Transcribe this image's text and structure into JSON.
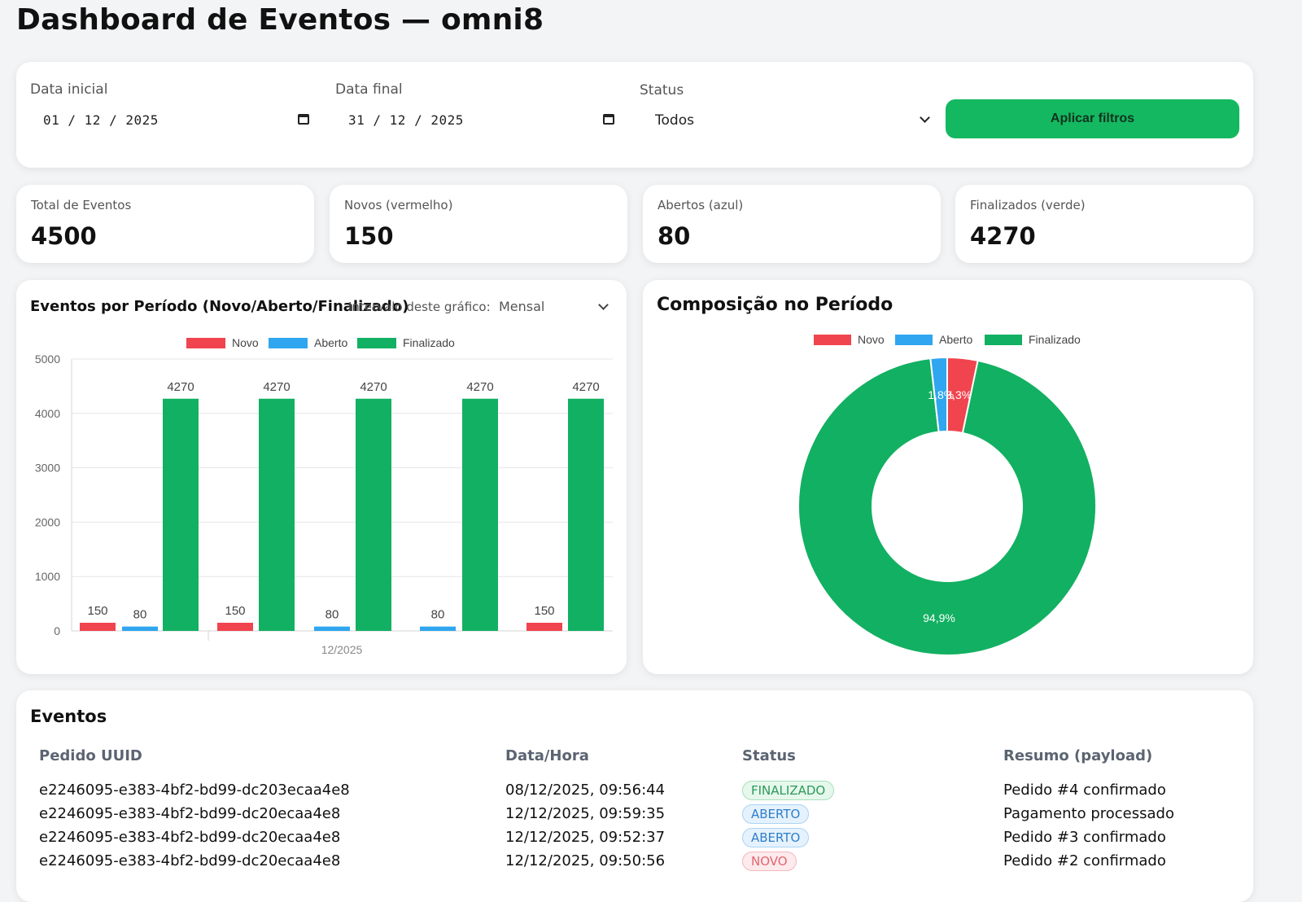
{
  "page_title": "Dashboard de Eventos — omni8",
  "filters": {
    "start_label": "Data inicial",
    "start_value": "01 / 12 / 2025",
    "end_label": "Data final",
    "end_value": "31 / 12 / 2025",
    "status_label": "Status",
    "status_value": "Todos",
    "apply_label": "Aplicar filtros"
  },
  "kpis": [
    {
      "label": "Total de Eventos",
      "value": "4500"
    },
    {
      "label": "Novos (vermelho)",
      "value": "150"
    },
    {
      "label": "Abertos (azul)",
      "value": "80"
    },
    {
      "label": "Finalizados (verde)",
      "value": "4270"
    }
  ],
  "colors": {
    "novo": "#f0444f",
    "aberto": "#2fa6ef",
    "finalizado": "#12b062"
  },
  "bar_card": {
    "title": "Eventos por Período (Novo/Aberto/Finalizado)",
    "interval_label": "Intervalo deste gráfico:",
    "interval_value": "Mensal"
  },
  "pie_card": {
    "title": "Composição no Período"
  },
  "chart_data": [
    {
      "type": "bar",
      "title": "Eventos por Período (Novo/Aberto/Finalizado)",
      "legend": [
        "Novo",
        "Aberto",
        "Finalizado"
      ],
      "y_ticks": [
        0,
        1000,
        2000,
        3000,
        4000,
        5000
      ],
      "ylim": [
        0,
        5000
      ],
      "x_tick_label": "12/2025",
      "bars": [
        {
          "series": "Novo",
          "value": 150,
          "label": "150"
        },
        {
          "series": "Aberto",
          "value": 80,
          "label": "80"
        },
        {
          "series": "Finalizado",
          "value": 4270,
          "label": "4270"
        },
        {
          "series": "Novo",
          "value": 150,
          "label": "150"
        },
        {
          "series": "Finalizado",
          "value": 4270,
          "label": "4270"
        },
        {
          "series": "Aberto",
          "value": 80,
          "label": "80"
        },
        {
          "series": "Finalizado",
          "value": 4270,
          "label": "4270"
        },
        {
          "series": "Aberto",
          "value": 80,
          "label": "80"
        },
        {
          "series": "Finalizado",
          "value": 4270,
          "label": "4270"
        },
        {
          "series": "Novo",
          "value": 150,
          "label": "150"
        },
        {
          "series": "Finalizado",
          "value": 4270,
          "label": "4270"
        }
      ]
    },
    {
      "type": "pie",
      "title": "Composição no Período",
      "legend": [
        "Novo",
        "Aberto",
        "Finalizado"
      ],
      "slices": [
        {
          "name": "Novo",
          "value": 3.3,
          "label": "3,3%"
        },
        {
          "name": "Aberto",
          "value": 1.8,
          "label": "1,8%"
        },
        {
          "name": "Finalizado",
          "value": 94.9,
          "label": "94,9%"
        }
      ]
    }
  ],
  "events": {
    "title": "Eventos",
    "columns": [
      "Pedido UUID",
      "Data/Hora",
      "Status",
      "Resumo (payload)"
    ],
    "rows": [
      {
        "uuid": "e2246095-e383-4bf2-bd99-dc203ecaa4e8",
        "datetime": "08/12/2025, 09:56:44",
        "status": "FINALIZADO",
        "summary": "Pedido #4 confirmado"
      },
      {
        "uuid": "e2246095-e383-4bf2-bd99-dc20ecaa4e8",
        "datetime": "12/12/2025, 09:59:35",
        "status": "ABERTO",
        "summary": "Pagamento processado"
      },
      {
        "uuid": "e2246095-e383-4bf2-bd99-dc20ecaa4e8",
        "datetime": "12/12/2025, 09:52:37",
        "status": "ABERTO",
        "summary": "Pedido #3 confirmado"
      },
      {
        "uuid": "e2246095-e383-4bf2-bd99-dc20ecaa4e8",
        "datetime": "12/12/2025, 09:50:56",
        "status": "NOVO",
        "summary": "Pedido #2 confirmado"
      }
    ]
  }
}
